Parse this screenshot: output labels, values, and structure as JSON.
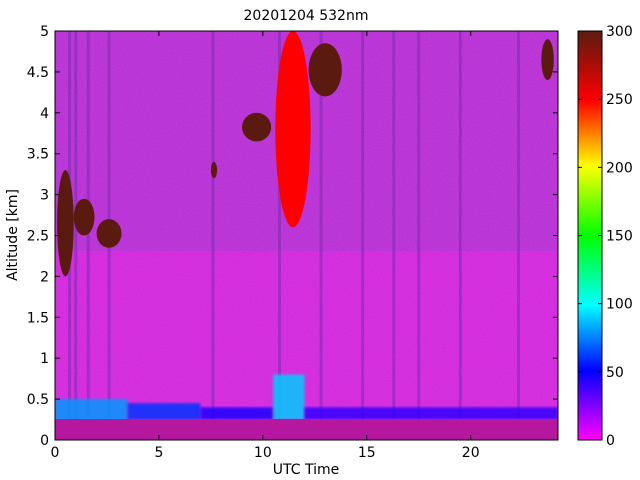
{
  "chart_data": {
    "type": "heatmap",
    "title": "20201204 532nm",
    "xlabel": "UTC Time",
    "ylabel": "Altitude [km]",
    "xlim": [
      0,
      24.2
    ],
    "ylim": [
      0,
      5
    ],
    "x_ticks": [
      {
        "value": 0,
        "label": "0"
      },
      {
        "value": 5,
        "label": "5"
      },
      {
        "value": 10,
        "label": "10"
      },
      {
        "value": 15,
        "label": "15"
      },
      {
        "value": 20,
        "label": "20"
      }
    ],
    "y_ticks": [
      {
        "value": 0,
        "label": "0"
      },
      {
        "value": 0.5,
        "label": "0.5"
      },
      {
        "value": 1,
        "label": "1"
      },
      {
        "value": 1.5,
        "label": "1.5"
      },
      {
        "value": 2,
        "label": "2"
      },
      {
        "value": 2.5,
        "label": "2.5"
      },
      {
        "value": 3,
        "label": "3"
      },
      {
        "value": 3.5,
        "label": "3.5"
      },
      {
        "value": 4,
        "label": "4"
      },
      {
        "value": 4.5,
        "label": "4.5"
      },
      {
        "value": 5,
        "label": "5"
      }
    ],
    "colorbar": {
      "range": [
        0,
        300
      ],
      "ticks": [
        {
          "value": 0,
          "label": "0"
        },
        {
          "value": 50,
          "label": "50"
        },
        {
          "value": 100,
          "label": "100"
        },
        {
          "value": 150,
          "label": "150"
        },
        {
          "value": 200,
          "label": "200"
        },
        {
          "value": 250,
          "label": "250"
        },
        {
          "value": 300,
          "label": "300"
        }
      ],
      "colors": [
        "#ff00ff",
        "#0000ff",
        "#00ffff",
        "#00ff00",
        "#ffff00",
        "#ff0000",
        "#5a1a10"
      ]
    },
    "background_color": "#d81fd8",
    "cloud_layers": [
      {
        "x_start": 0.1,
        "x_end": 0.9,
        "y_bottom": 2.0,
        "y_top": 3.3,
        "level": 300
      },
      {
        "x_start": 0.9,
        "x_end": 1.9,
        "y_bottom": 2.5,
        "y_top": 2.95,
        "level": 300
      },
      {
        "x_start": 2.0,
        "x_end": 3.2,
        "y_bottom": 2.35,
        "y_top": 2.7,
        "level": 300
      },
      {
        "x_start": 7.5,
        "x_end": 7.8,
        "y_bottom": 3.2,
        "y_top": 3.4,
        "level": 300
      },
      {
        "x_start": 9.0,
        "x_end": 10.4,
        "y_bottom": 3.65,
        "y_top": 4.0,
        "level": 300
      },
      {
        "x_start": 10.6,
        "x_end": 12.3,
        "y_bottom": 2.6,
        "y_top": 5.0,
        "level": 250
      },
      {
        "x_start": 12.2,
        "x_end": 13.8,
        "y_bottom": 4.2,
        "y_top": 4.85,
        "level": 300
      },
      {
        "x_start": 23.4,
        "x_end": 24.0,
        "y_bottom": 4.4,
        "y_top": 4.9,
        "level": 300
      }
    ],
    "boundary_layer": [
      {
        "x_start": 0,
        "x_end": 3.5,
        "y_bottom": 0.2,
        "y_top": 0.5,
        "level": 80
      },
      {
        "x_start": 3.5,
        "x_end": 7.0,
        "y_bottom": 0.25,
        "y_top": 0.45,
        "level": 60
      },
      {
        "x_start": 7.0,
        "x_end": 10.5,
        "y_bottom": 0.25,
        "y_top": 0.4,
        "level": 45
      },
      {
        "x_start": 10.5,
        "x_end": 12.0,
        "y_bottom": 0.25,
        "y_top": 0.8,
        "level": 90
      },
      {
        "x_start": 12.0,
        "x_end": 24.2,
        "y_bottom": 0.25,
        "y_top": 0.4,
        "level": 40
      }
    ],
    "vertical_streaks": [
      0.7,
      1.0,
      1.6,
      2.6,
      7.6,
      10.8,
      12.8,
      14.8,
      16.3,
      17.5,
      19.5,
      22.3
    ],
    "grid": false
  }
}
